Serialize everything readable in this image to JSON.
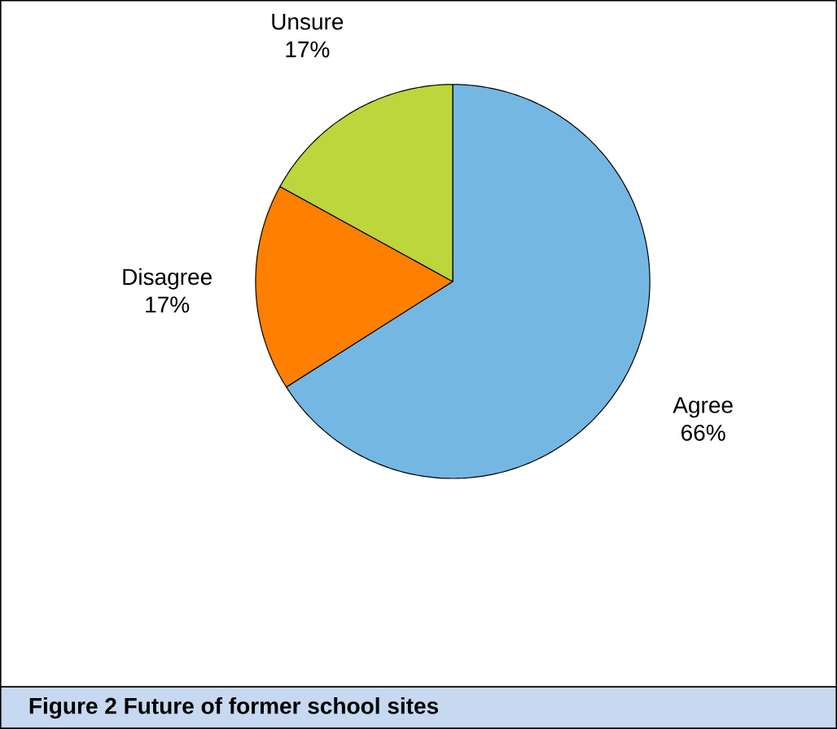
{
  "chart_data": {
    "type": "pie",
    "title": "Figure 2 Future of former school sites",
    "categories": [
      "Agree",
      "Disagree",
      "Unsure"
    ],
    "values": [
      66,
      17,
      17
    ],
    "value_labels": [
      "66%",
      "17%",
      "17%"
    ],
    "colors": [
      "#75b7e3",
      "#ff7f00",
      "#bcd63c"
    ]
  }
}
